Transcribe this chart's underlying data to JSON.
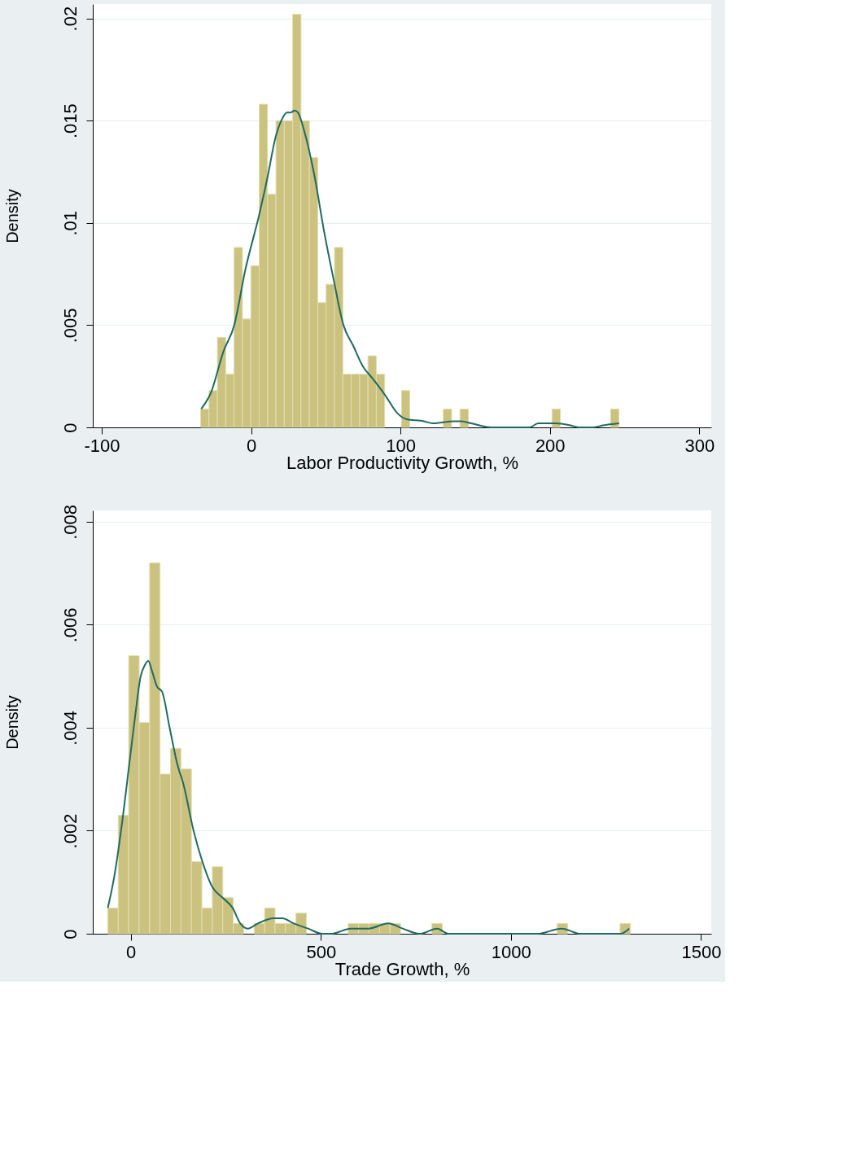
{
  "chart_data": [
    {
      "type": "histogram",
      "xlabel": "Labor Productivity Growth, %",
      "ylabel": "Density",
      "color": "#cbc27f",
      "bins": [
        -33.8,
        -28.2,
        -22.6,
        -17,
        -11.4,
        -5.8,
        -0.2,
        5.4,
        11,
        16.6,
        22.2,
        27.8,
        33.4,
        39,
        44.6,
        50.2,
        55.8,
        61.4,
        67,
        72.6,
        78.2,
        83.8,
        89.4,
        95,
        100.6,
        106.2,
        111.8,
        117.4,
        123,
        128.6,
        134.2,
        139.8,
        145.4,
        151,
        156.6,
        162.2,
        167.8,
        173.4,
        179,
        184.6,
        190.2,
        195.8,
        201.4,
        207,
        212.6,
        218.2,
        223.8,
        229.4,
        235,
        240.6,
        246.2
      ],
      "values": [
        0.0009,
        0.0018,
        0.0044,
        0.0026,
        0.0088,
        0.0053,
        0.0079,
        0.0158,
        0.0114,
        0.015,
        0.015,
        0.0202,
        0.015,
        0.0132,
        0.0061,
        0.007,
        0.0088,
        0.0026,
        0.0026,
        0.0026,
        0.0035,
        0.0026,
        0,
        0,
        0.0018,
        0,
        0,
        0,
        0,
        0.0009,
        0,
        0.0009,
        0,
        0,
        0,
        0,
        0,
        0,
        0,
        0,
        0,
        0,
        0.0009,
        0,
        0,
        0,
        0,
        0,
        0,
        0.0009
      ],
      "series": [
        {
          "type": "line",
          "color": "#1f6b62",
          "x": [
            -33.4,
            -26.9,
            -18.6,
            -11.3,
            -3.9,
            5.4,
            10.9,
            16.4,
            20.2,
            23.9,
            26.6,
            29.1,
            31.3,
            35.9,
            42.4,
            48.8,
            55.3,
            61.8,
            68.3,
            74.7,
            81.2,
            90.4,
            97.8,
            104,
            115.7,
            121.5,
            135.7,
            140.6,
            147.3,
            160.6,
            186.4,
            192.2,
            203.8,
            213.8,
            219.7,
            228.8,
            235.5,
            246.3
          ],
          "values": [
            0.0009,
            0.0017,
            0.0037,
            0.005,
            0.0077,
            0.0104,
            0.0122,
            0.0142,
            0.015,
            0.0154,
            0.0154,
            0.0155,
            0.0154,
            0.0144,
            0.0123,
            0.0096,
            0.0072,
            0.005,
            0.004,
            0.003,
            0.0024,
            0.0015,
            0.0007,
            0.0004,
            0.0003,
            0.0002,
            0.0003,
            0.0003,
            0.0002,
            0,
            0,
            0.0002,
            0.0002,
            0.0001,
            0,
            0,
            0.0001,
            0.0002
          ]
        }
      ],
      "xlim": [
        -106,
        308
      ],
      "ylim": [
        0,
        0.0207
      ],
      "xticks": [
        -100,
        0,
        100,
        200,
        300
      ],
      "yticks": [
        0,
        {
          "value": 0.005,
          "label": ".005"
        },
        {
          "value": 0.01,
          "label": ".01"
        },
        {
          "value": 0.015,
          "label": ".015"
        },
        {
          "value": 0.02,
          "label": ".02"
        }
      ],
      "grid": "y"
    },
    {
      "type": "histogram",
      "xlabel": "Trade Growth, %",
      "ylabel": "Density",
      "color": "#cbc27f",
      "bins": [
        -60.5,
        -33,
        -5.5,
        22,
        49.5,
        77,
        104.5,
        132,
        159.5,
        187,
        214.5,
        242,
        269.5,
        297,
        324.5,
        352,
        379.5,
        407,
        434.5,
        462,
        489.5,
        517,
        544.5,
        572,
        599.5,
        627,
        654.5,
        682,
        709.5,
        737,
        764.5,
        792,
        819.5,
        847,
        874.5,
        902,
        929.5,
        957,
        984.5,
        1012,
        1039.5,
        1067,
        1094.5,
        1122,
        1149.5,
        1177,
        1204.5,
        1232,
        1259.5,
        1287,
        1314.5
      ],
      "values": [
        0.0005,
        0.0023,
        0.0054,
        0.0041,
        0.0072,
        0.0031,
        0.0036,
        0.0032,
        0.0014,
        0.0005,
        0.0013,
        0.0007,
        0.0002,
        0,
        0.0002,
        0.0005,
        0.0002,
        0.0002,
        0.0004,
        0,
        0,
        0,
        0,
        0.0002,
        0.0002,
        0.0002,
        0.0002,
        0.0002,
        0,
        0,
        0,
        0.0002,
        0,
        0,
        0,
        0,
        0,
        0,
        0,
        0,
        0,
        0,
        0,
        0.0002,
        0,
        0,
        0,
        0,
        0,
        0.0002
      ],
      "series": [
        {
          "type": "line",
          "color": "#1f6b62",
          "x": [
            -60.4,
            -43.7,
            -23.9,
            -3.9,
            12.7,
            25.9,
            35.9,
            45.9,
            55.9,
            69,
            82.3,
            102.2,
            122.1,
            138.6,
            165.2,
            188.4,
            215,
            241.6,
            268,
            288,
            307.9,
            334.4,
            375.9,
            398.4,
            428.6,
            466.3,
            503.9,
            526.7,
            579.4,
            624.7,
            677.5,
            715.1,
            760.4,
            805.7,
            835.9,
            873.5,
            1069.6,
            1133.7,
            1182.7,
            1254.5,
            1288.4,
            1311
          ],
          "values": [
            0.0005,
            0.0011,
            0.0021,
            0.0033,
            0.0043,
            0.005,
            0.0052,
            0.0053,
            0.0051,
            0.0048,
            0.0047,
            0.004,
            0.0033,
            0.0029,
            0.002,
            0.0014,
            0.0009,
            0.0007,
            0.0005,
            0.0002,
            0.0001,
            0.0002,
            0.0003,
            0.0003,
            0.0002,
            0.0001,
            0,
            0,
            0.0001,
            0.0001,
            0.0002,
            0.0001,
            0,
            0.0001,
            0,
            0,
            0,
            0.0001,
            0,
            0,
            0,
            0.0001
          ]
        }
      ],
      "xlim": [
        -100,
        1527
      ],
      "ylim": [
        0,
        0.00822
      ],
      "xticks": [
        0,
        500,
        1000,
        1500
      ],
      "yticks": [
        0,
        {
          "value": 0.002,
          "label": ".002"
        },
        {
          "value": 0.004,
          "label": ".004"
        },
        {
          "value": 0.006,
          "label": ".006"
        },
        {
          "value": 0.008,
          "label": ".008"
        }
      ],
      "grid": "y"
    }
  ]
}
